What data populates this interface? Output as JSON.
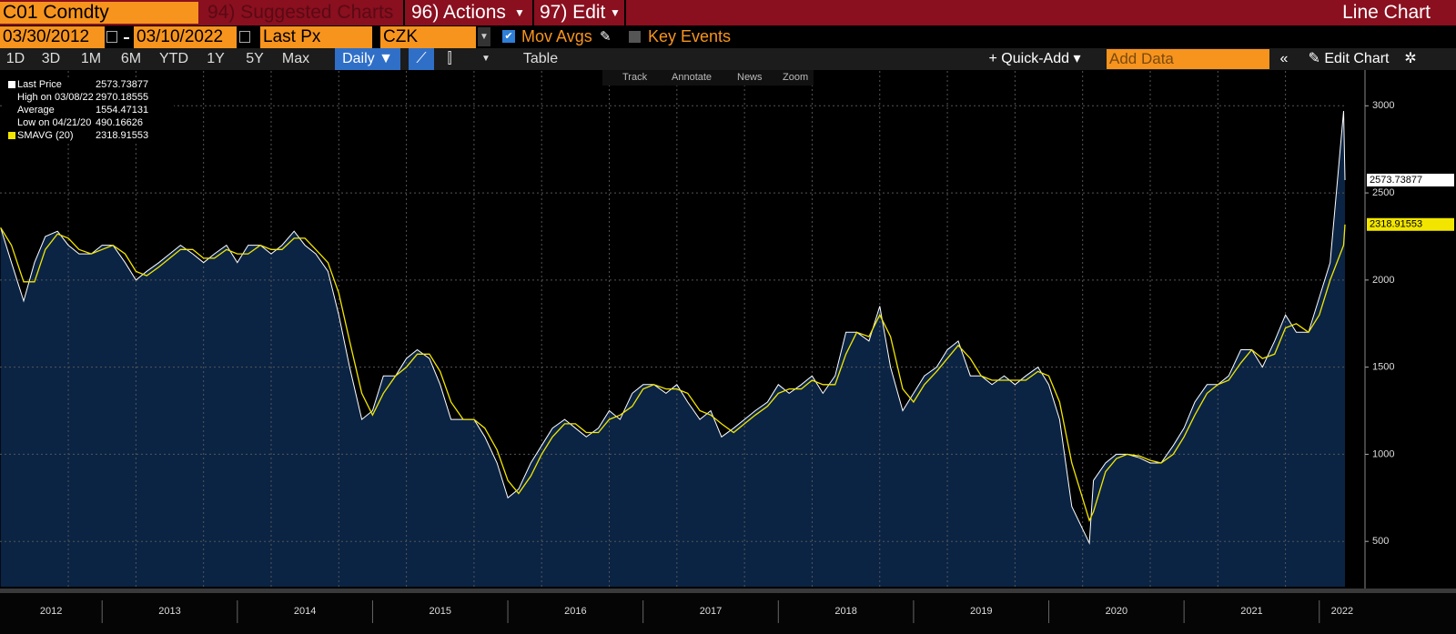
{
  "header": {
    "ticker": "C01 Comdty",
    "menus": [
      "94) Suggested Charts",
      "96) Actions",
      "97) Edit"
    ],
    "view": "Line Chart"
  },
  "controls": {
    "start_date": "03/30/2012",
    "end_date": "03/10/2022",
    "field": "Last Px",
    "currency": "CZK",
    "options": [
      "Mov Avgs",
      "Key Events"
    ],
    "periods": [
      "1D",
      "3D",
      "1M",
      "6M",
      "YTD",
      "1Y",
      "5Y",
      "Max"
    ],
    "frequency": "Daily",
    "table": "Table",
    "quick_add": "Quick-Add",
    "add_data": "Add Data",
    "edit_chart": "Edit Chart",
    "tools": [
      "Track",
      "Annotate",
      "News",
      "Zoom"
    ]
  },
  "chart_data": {
    "type": "line",
    "legend_labels": {
      "high": "High on 03/08/22",
      "average": "Average",
      "low": "Low on 04/21/20"
    },
    "average": 1554.47131,
    "x": [
      2012.25,
      2012.33,
      2012.42,
      2012.5,
      2012.58,
      2012.67,
      2012.75,
      2012.83,
      2012.92,
      2013.0,
      2013.08,
      2013.17,
      2013.25,
      2013.33,
      2013.42,
      2013.5,
      2013.58,
      2013.67,
      2013.75,
      2013.83,
      2013.92,
      2014.0,
      2014.08,
      2014.17,
      2014.25,
      2014.33,
      2014.42,
      2014.5,
      2014.58,
      2014.67,
      2014.75,
      2014.83,
      2014.92,
      2015.0,
      2015.08,
      2015.17,
      2015.25,
      2015.33,
      2015.42,
      2015.5,
      2015.58,
      2015.67,
      2015.75,
      2015.83,
      2015.92,
      2016.0,
      2016.08,
      2016.17,
      2016.25,
      2016.33,
      2016.42,
      2016.5,
      2016.58,
      2016.67,
      2016.75,
      2016.83,
      2016.92,
      2017.0,
      2017.08,
      2017.17,
      2017.25,
      2017.33,
      2017.42,
      2017.5,
      2017.58,
      2017.67,
      2017.75,
      2017.83,
      2017.92,
      2018.0,
      2018.08,
      2018.17,
      2018.25,
      2018.33,
      2018.42,
      2018.5,
      2018.58,
      2018.67,
      2018.75,
      2018.83,
      2018.92,
      2019.0,
      2019.08,
      2019.17,
      2019.25,
      2019.33,
      2019.42,
      2019.5,
      2019.58,
      2019.67,
      2019.75,
      2019.83,
      2019.92,
      2020.0,
      2020.08,
      2020.17,
      2020.3,
      2020.33,
      2020.42,
      2020.5,
      2020.58,
      2020.67,
      2020.75,
      2020.83,
      2020.92,
      2021.0,
      2021.08,
      2021.17,
      2021.25,
      2021.33,
      2021.42,
      2021.5,
      2021.58,
      2021.67,
      2021.75,
      2021.83,
      2021.92,
      2022.0,
      2022.08,
      2022.18,
      2022.19
    ],
    "series": [
      {
        "name": "Last Price",
        "color": "#ffffff",
        "values": [
          2300,
          2100,
          1880,
          2100,
          2250,
          2280,
          2200,
          2150,
          2150,
          2200,
          2200,
          2100,
          2000,
          2050,
          2100,
          2150,
          2200,
          2150,
          2100,
          2150,
          2200,
          2100,
          2200,
          2200,
          2150,
          2200,
          2280,
          2200,
          2150,
          2050,
          1800,
          1500,
          1200,
          1250,
          1450,
          1450,
          1550,
          1600,
          1550,
          1400,
          1200,
          1200,
          1200,
          1100,
          950,
          750,
          800,
          950,
          1050,
          1150,
          1200,
          1150,
          1100,
          1150,
          1250,
          1200,
          1350,
          1400,
          1400,
          1350,
          1400,
          1300,
          1200,
          1250,
          1100,
          1150,
          1200,
          1250,
          1300,
          1400,
          1350,
          1400,
          1450,
          1350,
          1450,
          1700,
          1700,
          1650,
          1850,
          1500,
          1250,
          1350,
          1450,
          1500,
          1600,
          1650,
          1450,
          1450,
          1400,
          1450,
          1400,
          1450,
          1500,
          1400,
          1200,
          700,
          490.16626,
          850,
          950,
          1000,
          1000,
          980,
          950,
          950,
          1050,
          1150,
          1300,
          1400,
          1400,
          1450,
          1600,
          1600,
          1500,
          1650,
          1800,
          1700,
          1700,
          1900,
          2100,
          2970.18555,
          2573.73877
        ]
      },
      {
        "name": "SMAVG (20)",
        "color": "#f2e600",
        "values": [
          2300,
          2200,
          1990,
          1990,
          2175,
          2265,
          2240,
          2175,
          2150,
          2175,
          2200,
          2150,
          2050,
          2025,
          2075,
          2125,
          2175,
          2175,
          2125,
          2125,
          2175,
          2150,
          2150,
          2200,
          2175,
          2175,
          2240,
          2240,
          2175,
          2100,
          1925,
          1650,
          1350,
          1225,
          1350,
          1450,
          1500,
          1575,
          1575,
          1475,
          1300,
          1200,
          1200,
          1150,
          1025,
          850,
          775,
          875,
          1000,
          1100,
          1175,
          1175,
          1125,
          1125,
          1200,
          1225,
          1275,
          1375,
          1400,
          1375,
          1375,
          1350,
          1250,
          1225,
          1175,
          1125,
          1175,
          1225,
          1275,
          1350,
          1375,
          1375,
          1425,
          1400,
          1400,
          1575,
          1700,
          1675,
          1800,
          1675,
          1375,
          1300,
          1400,
          1475,
          1550,
          1625,
          1550,
          1450,
          1425,
          1425,
          1425,
          1425,
          1475,
          1450,
          1300,
          950,
          620,
          670,
          900,
          975,
          1000,
          990,
          965,
          950,
          1000,
          1100,
          1225,
          1350,
          1400,
          1425,
          1525,
          1600,
          1550,
          1575,
          1725,
          1750,
          1700,
          1800,
          2000,
          2200,
          2318.91553
        ]
      }
    ],
    "area_color": "#0b2444",
    "xlim": [
      2012.245,
      2022.19
    ],
    "xticks": [
      2012,
      2013,
      2014,
      2015,
      2016,
      2017,
      2018,
      2019,
      2020,
      2021,
      2022
    ],
    "xgrid": [
      2012.75,
      2013.25,
      2013.75,
      2014.25,
      2014.75,
      2015.25,
      2015.75,
      2016.25,
      2016.75,
      2017.25,
      2017.75,
      2018.25,
      2018.75,
      2019.25,
      2019.75,
      2020.25,
      2020.75,
      2021.25,
      2021.75
    ],
    "ylim": [
      240,
      3200
    ],
    "yticks": [
      500,
      1000,
      1500,
      2000,
      2500,
      3000
    ],
    "grid": true
  }
}
